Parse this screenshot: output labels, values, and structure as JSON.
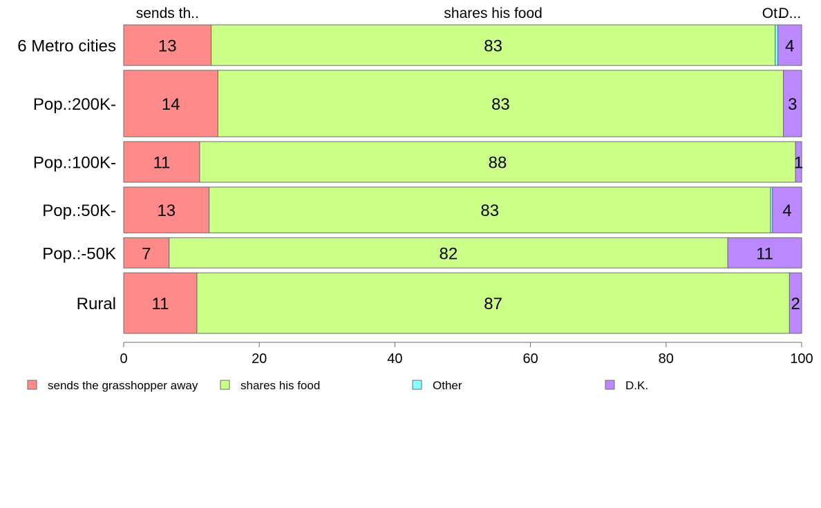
{
  "chart_data": {
    "type": "bar",
    "orientation": "horizontal",
    "stacked": true,
    "categories": [
      "6 Metro cities",
      "Pop.:200K-",
      "Pop.:100K-",
      "Pop.:50K-",
      "Pop.:-50K",
      "Rural"
    ],
    "series": [
      {
        "name": "sends the grasshopper away",
        "short_label": "sends th..",
        "color": "#ff8a8a",
        "values": [
          12.9,
          13.9,
          11.2,
          12.6,
          6.7,
          10.8
        ],
        "labels": [
          "13",
          "14",
          "11",
          "13",
          "7",
          "11"
        ]
      },
      {
        "name": "shares his food",
        "short_label": "shares his food",
        "color": "#ccff88",
        "values": [
          83.2,
          83.4,
          87.9,
          82.8,
          82.4,
          87.4
        ],
        "labels": [
          "83",
          "83",
          "88",
          "83",
          "82",
          "87"
        ]
      },
      {
        "name": "Other",
        "short_label": "Ot..",
        "color": "#88ffff",
        "values": [
          0.4,
          0,
          0,
          0.3,
          0,
          0
        ],
        "labels": [
          "",
          "",
          "",
          "",
          "",
          ""
        ]
      },
      {
        "name": "D.K.",
        "short_label": "D...",
        "color": "#bb88ff",
        "values": [
          3.5,
          2.7,
          0.9,
          4.3,
          10.9,
          1.8
        ],
        "labels": [
          "4",
          "3",
          "1",
          "4",
          "11",
          "2"
        ]
      }
    ],
    "bar_weights": [
      55,
      90,
      55,
      62,
      41,
      82
    ],
    "xlim": [
      0,
      100
    ],
    "x_ticks": [
      0,
      20,
      40,
      60,
      80,
      100
    ],
    "legend_position": "bottom",
    "grid": false,
    "title": "",
    "xlabel": "",
    "ylabel": ""
  }
}
